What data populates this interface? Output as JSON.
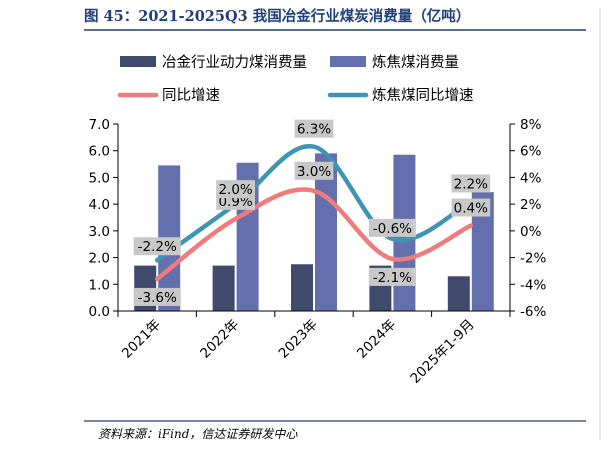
{
  "title": "图 45：2021-2025Q3 我国冶金行业煤炭消费量（亿吨）",
  "source": "资料来源：iFind，信达证券研发中心",
  "colors": {
    "title": "#1f3f7a",
    "metallurgy_bar": "#404a6c",
    "coking_bar": "#6470ad",
    "metallurgy_line": "#f17a7a",
    "coking_line": "#3e94b3",
    "label_bg": "#c8c8c8"
  },
  "chart_data": {
    "type": "bar",
    "categories": [
      "2021年",
      "2022年",
      "2023年",
      "2024年",
      "2025年1-9月"
    ],
    "series": [
      {
        "name": "冶金行业动力煤消费量",
        "kind": "bar",
        "axis": "left",
        "values": [
          1.7,
          1.7,
          1.75,
          1.7,
          1.3
        ]
      },
      {
        "name": "炼焦煤消费量",
        "kind": "bar",
        "axis": "left",
        "values": [
          5.45,
          5.55,
          5.9,
          5.85,
          4.45
        ]
      },
      {
        "name": "同比增速",
        "kind": "line",
        "axis": "right",
        "values": [
          -3.6,
          0.9,
          3.0,
          -2.1,
          0.4
        ],
        "labels": [
          "-3.6%",
          "0.9%",
          "3.0%",
          "-2.1%",
          "0.4%"
        ]
      },
      {
        "name": "炼焦煤同比增速",
        "kind": "line",
        "axis": "right",
        "values": [
          -2.2,
          2.0,
          6.3,
          -0.6,
          2.2
        ],
        "labels": [
          "-2.2%",
          "2.0%",
          "6.3%",
          "-0.6%",
          "2.2%"
        ]
      }
    ],
    "y_left": {
      "min": 0,
      "max": 7,
      "ticks": [
        "0.0",
        "1.0",
        "2.0",
        "3.0",
        "4.0",
        "5.0",
        "6.0",
        "7.0"
      ]
    },
    "y_right": {
      "min": -6,
      "max": 8,
      "ticks": [
        "-6%",
        "-4%",
        "-2%",
        "0%",
        "2%",
        "4%",
        "6%",
        "8%"
      ]
    },
    "legend_placement": "top",
    "grid": false
  }
}
